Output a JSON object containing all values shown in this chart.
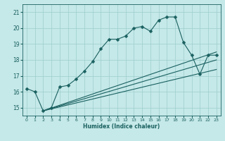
{
  "xlabel": "Humidex (Indice chaleur)",
  "ylabel": "",
  "bg_color": "#c5e8e8",
  "grid_color": "#9dcece",
  "line_color": "#1a6060",
  "xlim": [
    -0.5,
    23.5
  ],
  "ylim": [
    14.5,
    21.5
  ],
  "xticks": [
    0,
    1,
    2,
    3,
    4,
    5,
    6,
    7,
    8,
    9,
    10,
    11,
    12,
    13,
    14,
    15,
    16,
    17,
    18,
    19,
    20,
    21,
    22,
    23
  ],
  "yticks": [
    15,
    16,
    17,
    18,
    19,
    20,
    21
  ],
  "series": [
    {
      "x": [
        0,
        1,
        2,
        3,
        4,
        5,
        6,
        7,
        8,
        9,
        10,
        11,
        12,
        13,
        14,
        15,
        16,
        17,
        18,
        19,
        20,
        21,
        22,
        23
      ],
      "y": [
        16.2,
        16.0,
        14.8,
        15.0,
        16.3,
        16.4,
        16.8,
        17.3,
        17.9,
        18.7,
        19.3,
        19.3,
        19.5,
        20.0,
        20.1,
        19.8,
        20.5,
        20.7,
        20.7,
        19.1,
        18.3,
        17.1,
        18.3,
        18.3
      ],
      "marker": "D",
      "markersize": 2.5
    },
    {
      "x": [
        2,
        23
      ],
      "y": [
        14.8,
        18.5
      ],
      "marker": null
    },
    {
      "x": [
        2,
        23
      ],
      "y": [
        14.8,
        18.0
      ],
      "marker": null
    },
    {
      "x": [
        2,
        23
      ],
      "y": [
        14.8,
        17.4
      ],
      "marker": null
    }
  ]
}
